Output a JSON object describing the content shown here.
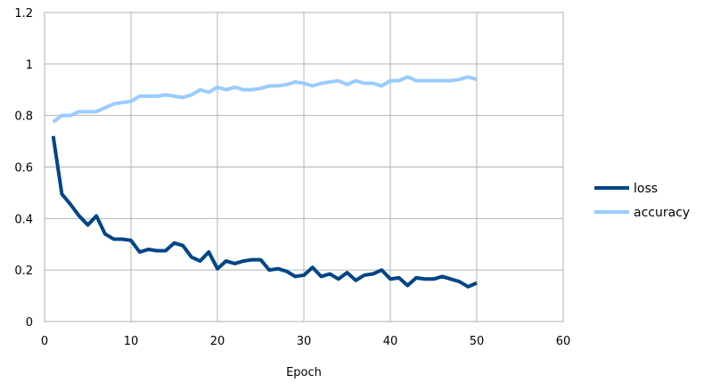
{
  "chart_data": {
    "type": "line",
    "title": "",
    "xlabel": "Epoch",
    "ylabel": "",
    "xlim": [
      0,
      60
    ],
    "ylim": [
      0,
      1.2
    ],
    "xticks": [
      0,
      10,
      20,
      30,
      40,
      50,
      60
    ],
    "yticks": [
      0,
      0.2,
      0.4,
      0.6,
      0.8,
      1,
      1.2
    ],
    "xtick_labels": [
      "0",
      "10",
      "20",
      "30",
      "40",
      "50",
      "60"
    ],
    "ytick_labels": [
      "0",
      "0.2",
      "0.4",
      "0.6",
      "0.8",
      "1",
      "1.2"
    ],
    "grid": true,
    "legend_position": "right",
    "x": [
      1,
      2,
      3,
      4,
      5,
      6,
      7,
      8,
      9,
      10,
      11,
      12,
      13,
      14,
      15,
      16,
      17,
      18,
      19,
      20,
      21,
      22,
      23,
      24,
      25,
      26,
      27,
      28,
      29,
      30,
      31,
      32,
      33,
      34,
      35,
      36,
      37,
      38,
      39,
      40,
      41,
      42,
      43,
      44,
      45,
      46,
      47,
      48,
      49,
      50
    ],
    "series": [
      {
        "name": "loss",
        "color": "#004586",
        "values": [
          0.72,
          0.495,
          0.455,
          0.41,
          0.375,
          0.41,
          0.34,
          0.32,
          0.32,
          0.315,
          0.27,
          0.28,
          0.275,
          0.275,
          0.305,
          0.295,
          0.25,
          0.235,
          0.27,
          0.205,
          0.235,
          0.225,
          0.235,
          0.24,
          0.24,
          0.2,
          0.205,
          0.195,
          0.175,
          0.18,
          0.21,
          0.175,
          0.185,
          0.165,
          0.19,
          0.16,
          0.18,
          0.185,
          0.2,
          0.165,
          0.17,
          0.14,
          0.17,
          0.165,
          0.165,
          0.175,
          0.165,
          0.155,
          0.135,
          0.15
        ]
      },
      {
        "name": "accuracy",
        "color": "#99ccff",
        "values": [
          0.775,
          0.8,
          0.8,
          0.815,
          0.815,
          0.815,
          0.83,
          0.845,
          0.85,
          0.855,
          0.875,
          0.875,
          0.875,
          0.88,
          0.875,
          0.87,
          0.88,
          0.9,
          0.89,
          0.91,
          0.9,
          0.91,
          0.9,
          0.9,
          0.905,
          0.915,
          0.915,
          0.92,
          0.93,
          0.925,
          0.915,
          0.925,
          0.93,
          0.935,
          0.92,
          0.935,
          0.925,
          0.925,
          0.915,
          0.935,
          0.935,
          0.95,
          0.935,
          0.935,
          0.935,
          0.935,
          0.935,
          0.94,
          0.95,
          0.94
        ]
      }
    ]
  }
}
